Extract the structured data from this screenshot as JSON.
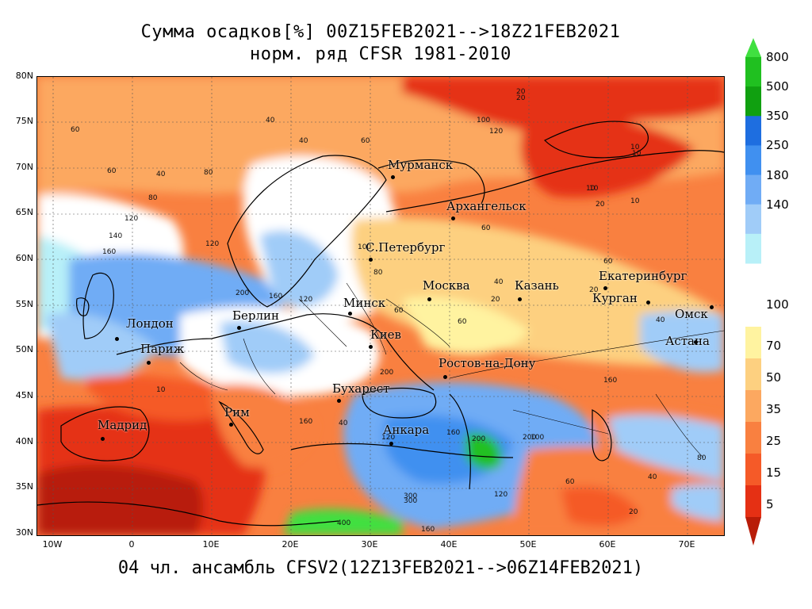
{
  "title": {
    "line1": "Сумма осадков[%] 00Z15FEB2021-->18Z21FEB2021",
    "line2": "норм. ряд CFSR 1981-2010"
  },
  "footer": "04 чл. ансамбль CFSV2(12Z13FEB2021-->06Z14FEB2021)",
  "map": {
    "lat_labels": [
      "80N",
      "75N",
      "70N",
      "65N",
      "60N",
      "55N",
      "50N",
      "45N",
      "40N",
      "35N",
      "30N"
    ],
    "lon_labels": [
      "10W",
      "0",
      "10E",
      "20E",
      "30E",
      "40E",
      "50E",
      "60E",
      "70E"
    ],
    "cities": [
      {
        "name": "Мурманск"
      },
      {
        "name": "Архангельск"
      },
      {
        "name": "С.Петербург"
      },
      {
        "name": "Москва"
      },
      {
        "name": "Казань"
      },
      {
        "name": "Екатеринбург"
      },
      {
        "name": "Курган"
      },
      {
        "name": "Омск"
      },
      {
        "name": "Астана"
      },
      {
        "name": "Минск"
      },
      {
        "name": "Берлин"
      },
      {
        "name": "Лондон"
      },
      {
        "name": "Париж"
      },
      {
        "name": "Киев"
      },
      {
        "name": "Ростов-на-Дону"
      },
      {
        "name": "Бухарест"
      },
      {
        "name": "Рим"
      },
      {
        "name": "Мадрид"
      },
      {
        "name": "Анкара"
      }
    ],
    "contour_labels": [
      "20",
      "60",
      "40",
      "60",
      "100",
      "120",
      "10",
      "10",
      "10",
      "20",
      "60",
      "40",
      "40",
      "60",
      "80",
      "80",
      "120",
      "140",
      "160",
      "120",
      "200",
      "160",
      "120",
      "100",
      "60",
      "80",
      "60",
      "40",
      "60",
      "20",
      "10",
      "10",
      "20",
      "20",
      "10",
      "40",
      "120",
      "200",
      "160",
      "160",
      "300",
      "400",
      "160",
      "200",
      "200",
      "120",
      "300",
      "80",
      "40",
      "20",
      "60",
      "100",
      "160",
      "40"
    ]
  },
  "legend": {
    "colors": [
      "#40e040",
      "#20c020",
      "#10a010",
      "#1e6ee0",
      "#4090f0",
      "#70acf5",
      "#a0ccf8",
      "#b8f0f8",
      "#ffffff",
      "#fff3a0",
      "#fdd080",
      "#fca860",
      "#f98040",
      "#f55a28",
      "#e53014",
      "#b81c08"
    ],
    "upper_labels": [
      "800",
      "500",
      "350",
      "250",
      "180",
      "140"
    ],
    "middle_label": "100",
    "lower_labels": [
      "70",
      "50",
      "35",
      "25",
      "15",
      "5"
    ]
  }
}
